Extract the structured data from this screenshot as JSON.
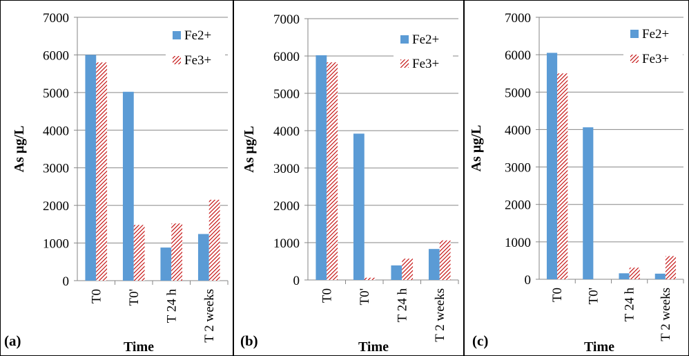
{
  "colors": {
    "fe2": "#5B9BD5",
    "fe3": "#C00000",
    "grid": "#868686",
    "axis": "#868686"
  },
  "chart_data": [
    {
      "type": "bar",
      "panel_label": "(a)",
      "categories": [
        "T0",
        "T0'",
        "T 24 h",
        "T 2 weeks"
      ],
      "series": [
        {
          "name": "Fe2+",
          "values": [
            6000,
            5020,
            880,
            1240
          ]
        },
        {
          "name": "Fe3+",
          "values": [
            5800,
            1480,
            1520,
            2150
          ]
        }
      ],
      "xlabel": "Time",
      "ylabel": "As µg/L",
      "ylim": [
        0,
        7000
      ],
      "yticks": [
        "0",
        "1000",
        "2000",
        "3000",
        "4000",
        "5000",
        "6000",
        "7000"
      ],
      "grid": true,
      "legend": "top-right"
    },
    {
      "type": "bar",
      "panel_label": "(b)",
      "categories": [
        "T0",
        "T0'",
        "T 24 h",
        "T 2 weeks"
      ],
      "series": [
        {
          "name": "Fe2+",
          "values": [
            6020,
            3920,
            390,
            830
          ]
        },
        {
          "name": "Fe3+",
          "values": [
            5830,
            60,
            570,
            1060
          ]
        }
      ],
      "xlabel": "Time",
      "ylabel": "As µg/L",
      "ylim": [
        0,
        7000
      ],
      "yticks": [
        "0",
        "1000",
        "2000",
        "3000",
        "4000",
        "5000",
        "6000",
        "7000"
      ],
      "grid": true,
      "legend": "top-right"
    },
    {
      "type": "bar",
      "panel_label": "(c)",
      "categories": [
        "T0",
        "T0'",
        "T 24 h",
        "T 2 weeks"
      ],
      "series": [
        {
          "name": "Fe2+",
          "values": [
            6050,
            4060,
            160,
            150
          ]
        },
        {
          "name": "Fe3+",
          "values": [
            5500,
            0,
            310,
            620
          ]
        }
      ],
      "xlabel": "Time",
      "ylabel": "As µg/L",
      "ylim": [
        0,
        7000
      ],
      "yticks": [
        "0",
        "1000",
        "2000",
        "3000",
        "4000",
        "5000",
        "6000",
        "7000"
      ],
      "grid": true,
      "legend": "top-right"
    }
  ]
}
